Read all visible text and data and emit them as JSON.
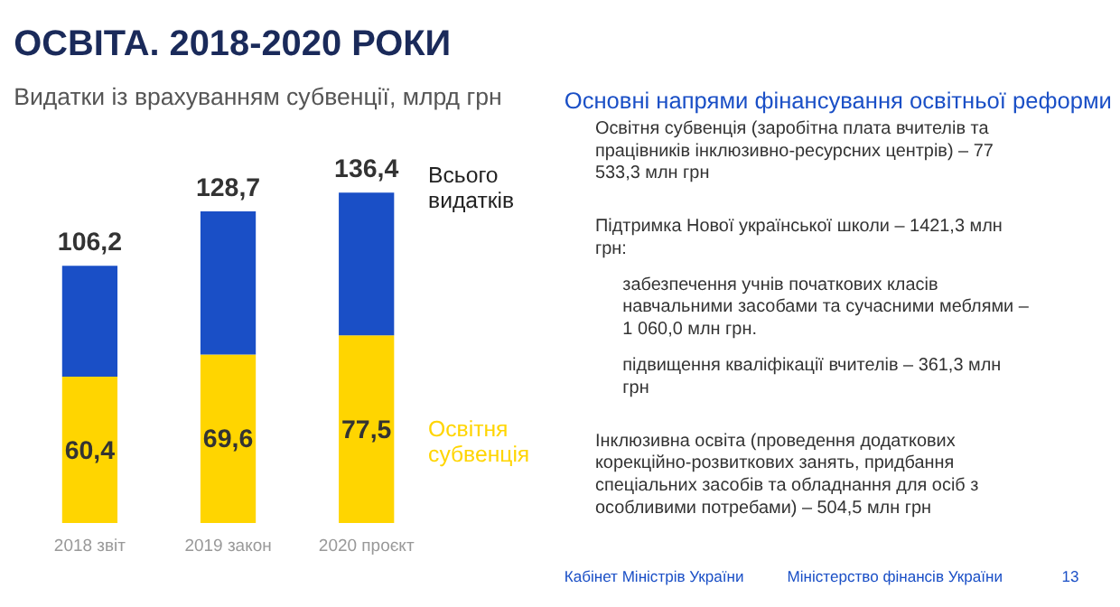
{
  "chart_data": [
    {
      "type": "bar",
      "title": "ОСВІТА. 2018-2020 РОКИ",
      "subtitle": "Видатки із врахуванням субвенції, млрд грн",
      "categories": [
        "2018 звіт",
        "2019 закон",
        "2020 проєкт"
      ],
      "stacked": true,
      "series": [
        {
          "name": "Освітня субвенція",
          "color": "#ffd500",
          "values": [
            60.4,
            69.6,
            77.5
          ],
          "value_labels": [
            "60,4",
            "69,6",
            "77,5"
          ]
        },
        {
          "color": "#1a4fc6",
          "values": [
            45.8,
            59.1,
            58.9
          ]
        }
      ],
      "totals": [
        "106,2",
        "128,7",
        "136,4"
      ],
      "annotations": [
        {
          "text": "Всього видатків",
          "x": "2020 проєкт",
          "y": 136.4
        }
      ],
      "grid": false
    },
    {
      "type": "other",
      "title": "Основні напрями фінансування освітньої реформи",
      "annotations": [
        "Освітня субвенція (заробітна плата вчителів та працівників інклюзивно-ресурсних центрів) – 77 533,3 млн грн",
        "Підтримка Нової української школи – 1421,3 млн грн:",
        "забезпечення учнів початкових класів навчальними засобами та сучасними меблями – 1 060,0 млн грн.",
        "підвищення кваліфікації вчителів – 361,3 млн грн",
        "Інклюзивна освіта (проведення додаткових корекційно-розвиткових занять, придбання спеціальних засобів та обладнання для осіб з особливими потребами) – 504,5 млн грн",
        "Кабінет Міністрів України",
        "Міністерство фінансів України",
        "13"
      ]
    }
  ]
}
